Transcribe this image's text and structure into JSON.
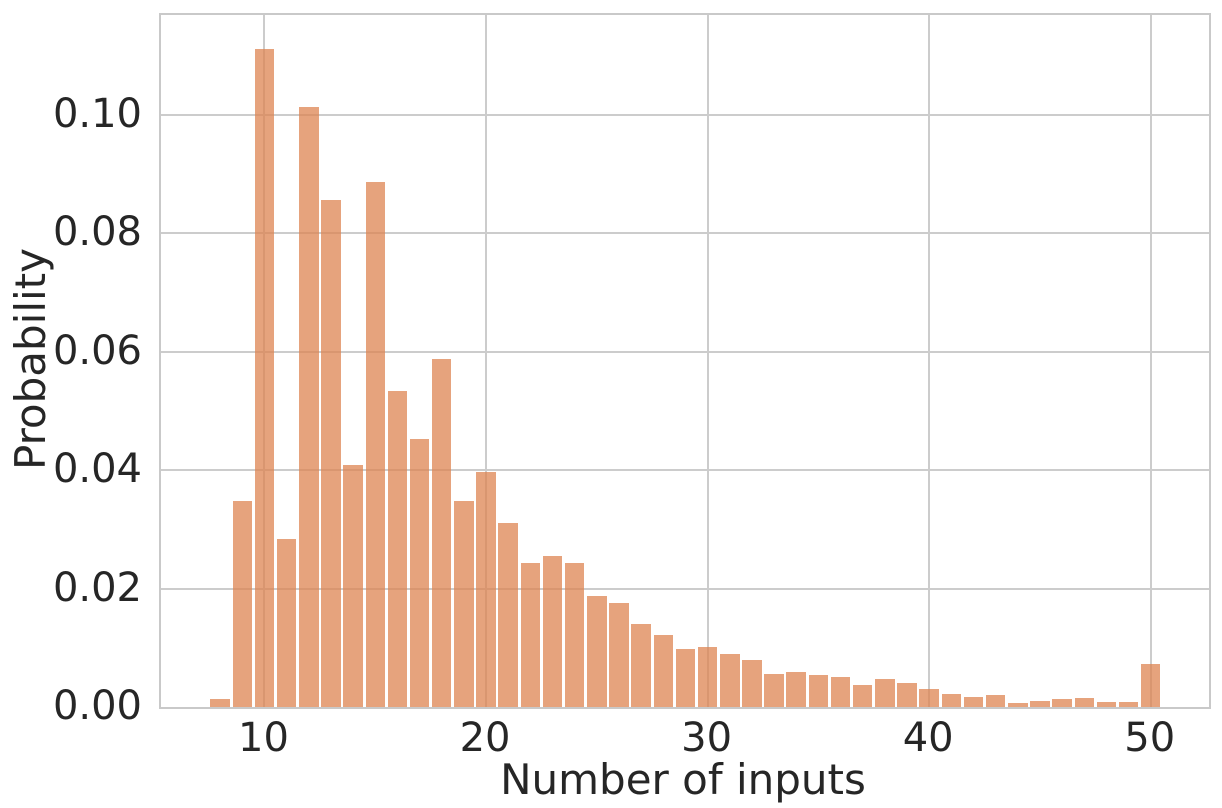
{
  "chart_data": {
    "type": "bar",
    "subtype": "histogram",
    "title": "",
    "xlabel": "Number of inputs",
    "ylabel": "Probability",
    "x": [
      8,
      9,
      10,
      11,
      12,
      13,
      14,
      15,
      16,
      17,
      18,
      19,
      20,
      21,
      22,
      23,
      24,
      25,
      26,
      27,
      28,
      29,
      30,
      31,
      32,
      33,
      34,
      35,
      36,
      37,
      38,
      39,
      40,
      41,
      42,
      43,
      44,
      45,
      46,
      47,
      48,
      49,
      50
    ],
    "values": [
      0.0013,
      0.0348,
      0.1111,
      0.0284,
      0.1012,
      0.0856,
      0.0408,
      0.0887,
      0.0534,
      0.0452,
      0.0588,
      0.0348,
      0.0396,
      0.031,
      0.0243,
      0.0255,
      0.0243,
      0.0188,
      0.0175,
      0.014,
      0.0121,
      0.0098,
      0.0101,
      0.0089,
      0.0079,
      0.0056,
      0.006,
      0.0054,
      0.0051,
      0.0038,
      0.0047,
      0.0041,
      0.0031,
      0.0022,
      0.0017,
      0.002,
      0.0007,
      0.0011,
      0.0013,
      0.0015,
      0.0008,
      0.0008,
      0.0072
    ],
    "bar_unit_width": 0.88,
    "xlim": [
      5.33,
      52.63
    ],
    "ylim": [
      0,
      0.1168
    ],
    "xticks": [
      {
        "value": 10,
        "label": "10"
      },
      {
        "value": 20,
        "label": "20"
      },
      {
        "value": 30,
        "label": "30"
      },
      {
        "value": 40,
        "label": "40"
      },
      {
        "value": 50,
        "label": "50"
      }
    ],
    "yticks": [
      {
        "value": 0.0,
        "label": "0.00"
      },
      {
        "value": 0.02,
        "label": "0.02"
      },
      {
        "value": 0.04,
        "label": "0.04"
      },
      {
        "value": 0.06,
        "label": "0.06"
      },
      {
        "value": 0.08,
        "label": "0.08"
      },
      {
        "value": 0.1,
        "label": "0.10"
      }
    ],
    "grid": true,
    "legend_position": "none",
    "bar_color": "#dd8452",
    "bar_alpha": 0.75,
    "grid_color": "#cccccc",
    "spine_color": "#c9c9c9",
    "text_color": "#262626",
    "background_color": "#ffffff"
  }
}
